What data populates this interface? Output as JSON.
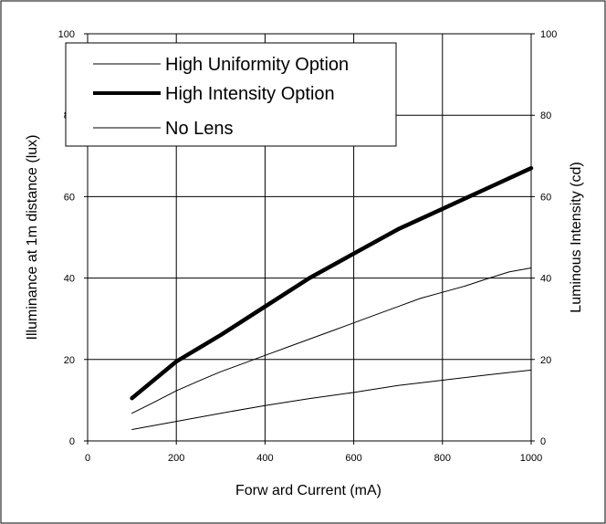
{
  "chart_data": {
    "type": "line",
    "title": "",
    "xlabel": "Forw ard Current (mA)",
    "ylabel": "Illuminance at 1m distance (lux)",
    "y2label": "Luminous Intensity (cd)",
    "xlim": [
      0,
      1000
    ],
    "ylim": [
      0,
      100
    ],
    "y2lim": [
      0,
      100
    ],
    "x_ticks": [
      "0",
      "200",
      "400",
      "600",
      "800",
      "1000"
    ],
    "y_ticks": [
      "0",
      "20",
      "40",
      "60",
      "80",
      "100"
    ],
    "y2_ticks": [
      "0",
      "20",
      "40",
      "60",
      "80",
      "100"
    ],
    "grid": true,
    "legend_position": "top-left",
    "series": [
      {
        "name": "High Uniformity Option",
        "style": "thin",
        "x": [
          100,
          150,
          200,
          250,
          300,
          350,
          400,
          450,
          500,
          550,
          600,
          650,
          700,
          750,
          800,
          850,
          900,
          950,
          1000
        ],
        "y": [
          6.8,
          9.5,
          12.3,
          14.7,
          17,
          19,
          21,
          23,
          25,
          27,
          29,
          31,
          33,
          35,
          36.5,
          38,
          39.8,
          41.5,
          42.5
        ]
      },
      {
        "name": "High Intensity Option",
        "style": "bold",
        "x": [
          100,
          200,
          300,
          400,
          500,
          600,
          700,
          800,
          900,
          1000
        ],
        "y": [
          10.5,
          19.5,
          26,
          33,
          40,
          46,
          52,
          57,
          62,
          67
        ]
      },
      {
        "name": "No Lens",
        "style": "thin",
        "x": [
          100,
          200,
          300,
          400,
          500,
          600,
          700,
          800,
          900,
          1000
        ],
        "y": [
          2.8,
          4.8,
          6.8,
          8.7,
          10.4,
          11.9,
          13.6,
          14.9,
          16.2,
          17.4
        ]
      }
    ],
    "colors": {
      "line": "#000000",
      "grid": "#000000",
      "background": "#ffffff"
    }
  }
}
